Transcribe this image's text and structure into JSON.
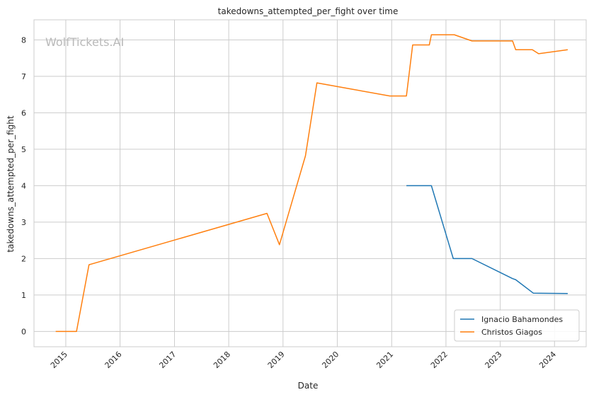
{
  "chart_data": {
    "type": "line",
    "title": "takedowns_attempted_per_fight over time",
    "xlabel": "Date",
    "ylabel": "takedowns_attempted_per_fight",
    "watermark": "WolfTickets.AI",
    "grid": true,
    "legend_position": "lower right",
    "x_ticks": [
      "2015",
      "2016",
      "2017",
      "2018",
      "2019",
      "2020",
      "2021",
      "2022",
      "2023",
      "2024"
    ],
    "y_ticks": [
      "0",
      "1",
      "2",
      "3",
      "4",
      "5",
      "6",
      "7",
      "8"
    ],
    "xlim": [
      "2014-06-01",
      "2024-08-01"
    ],
    "ylim": [
      -0.42,
      8.55
    ],
    "series": [
      {
        "name": "Ignacio Bahamondes",
        "color": "#1f77b4",
        "points": [
          [
            "2021-04-10",
            4.0
          ],
          [
            "2021-09-25",
            4.0
          ],
          [
            "2022-02-19",
            2.0
          ],
          [
            "2022-06-25",
            2.0
          ],
          [
            "2023-03-25",
            1.45
          ],
          [
            "2023-04-15",
            1.42
          ],
          [
            "2023-08-12",
            1.05
          ],
          [
            "2024-03-30",
            1.04
          ]
        ]
      },
      {
        "name": "Christos Giagos",
        "color": "#ff7f0e",
        "points": [
          [
            "2014-10-25",
            0.0
          ],
          [
            "2015-03-14",
            0.0
          ],
          [
            "2015-06-06",
            1.83
          ],
          [
            "2018-09-15",
            3.24
          ],
          [
            "2018-12-08",
            2.38
          ],
          [
            "2019-06-01",
            4.82
          ],
          [
            "2019-08-17",
            6.82
          ],
          [
            "2020-12-19",
            6.46
          ],
          [
            "2021-04-10",
            6.46
          ],
          [
            "2021-05-22",
            7.86
          ],
          [
            "2021-09-11",
            7.86
          ],
          [
            "2021-09-25",
            8.14
          ],
          [
            "2022-02-26",
            8.14
          ],
          [
            "2022-06-25",
            7.97
          ],
          [
            "2023-03-25",
            7.97
          ],
          [
            "2023-04-15",
            7.73
          ],
          [
            "2023-08-05",
            7.73
          ],
          [
            "2023-09-16",
            7.62
          ],
          [
            "2024-03-30",
            7.73
          ]
        ]
      }
    ]
  }
}
